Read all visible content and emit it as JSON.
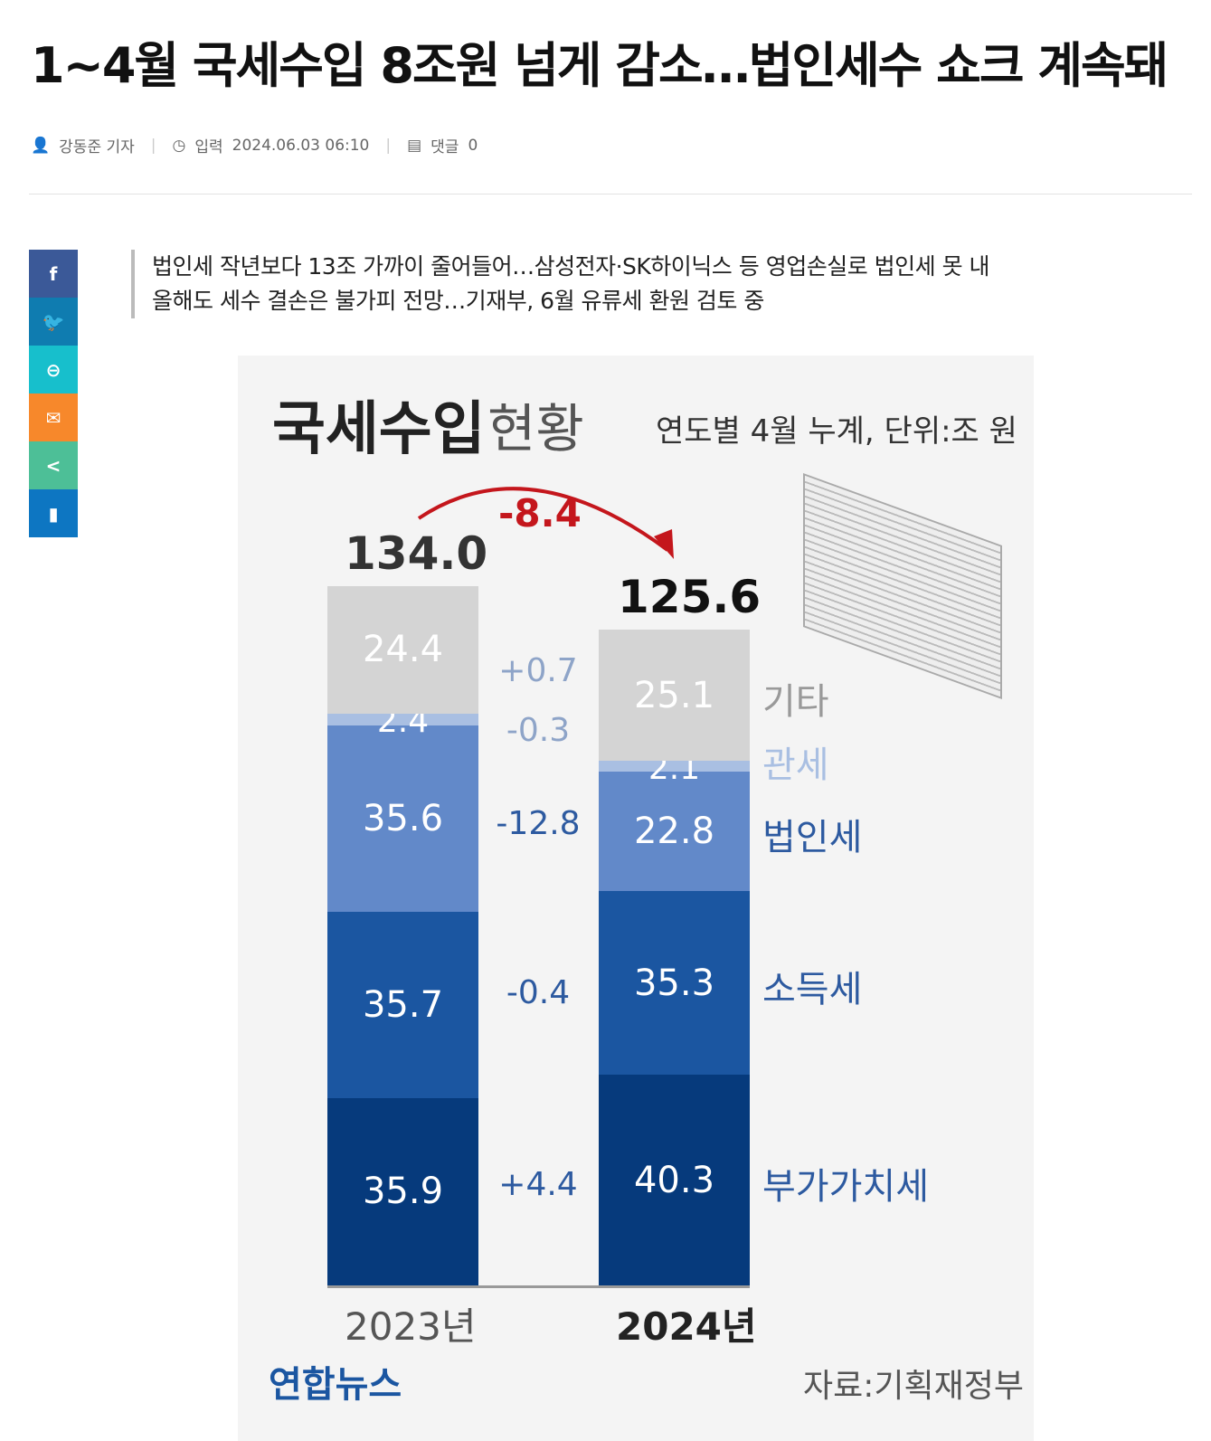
{
  "article": {
    "title": "1~4월 국세수입 8조원 넘게 감소…법인세수 쇼크 계속돼",
    "author": "강동준 기자",
    "date_label": "입력",
    "date": "2024.06.03 06:10",
    "comments_label": "댓글",
    "comments": "0",
    "summary": [
      "법인세 작년보다 13조 가까이 줄어들어…삼성전자·SK하이닉스 등 영업손실로 법인세 못 내",
      "올해도 세수 결손은 불가피 전망…기재부, 6월 유류세 환원 검토 중"
    ]
  },
  "share": [
    {
      "icon": "facebook-icon",
      "color": "#3b5998",
      "glyph": "f"
    },
    {
      "icon": "twitter-icon",
      "color": "#0f7cb0",
      "glyph": "🐦"
    },
    {
      "icon": "link-icon",
      "color": "#17bfcc",
      "glyph": "⊖"
    },
    {
      "icon": "mail-icon",
      "color": "#f7882b",
      "glyph": "✉"
    },
    {
      "icon": "share-icon",
      "color": "#4dbf97",
      "glyph": "<"
    },
    {
      "icon": "bookmark-icon",
      "color": "#0d76c2",
      "glyph": "▮"
    }
  ],
  "chart_data": {
    "type": "bar",
    "stacked": true,
    "title": "국세수입",
    "title_suffix": "현황",
    "subtitle": "연도별 4월 누계, 단위:조 원",
    "categories": [
      "2023년",
      "2024년"
    ],
    "totals": [
      "134.0",
      "125.6"
    ],
    "total_change": "-8.4",
    "series": [
      {
        "name": "부가가치세",
        "values": [
          35.9,
          40.3
        ],
        "change": "+4.4",
        "color": "#063a7c"
      },
      {
        "name": "소득세",
        "values": [
          35.7,
          35.3
        ],
        "change": "-0.4",
        "color": "#1b56a1"
      },
      {
        "name": "법인세",
        "values": [
          35.6,
          22.8
        ],
        "change": "-12.8",
        "color": "#6289c9"
      },
      {
        "name": "관세",
        "values": [
          2.4,
          2.1
        ],
        "change": "-0.3",
        "color": "#a9bfe2"
      },
      {
        "name": "기타",
        "values": [
          24.4,
          25.1
        ],
        "change": "+0.7",
        "color": "#d4d4d4"
      }
    ],
    "source": "자료:기획재정부",
    "logo": "연합뉴스"
  }
}
